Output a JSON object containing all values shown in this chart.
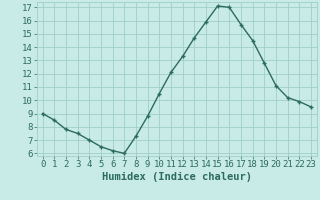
{
  "x": [
    0,
    1,
    2,
    3,
    4,
    5,
    6,
    7,
    8,
    9,
    10,
    11,
    12,
    13,
    14,
    15,
    16,
    17,
    18,
    19,
    20,
    21,
    22,
    23
  ],
  "y": [
    9.0,
    8.5,
    7.8,
    7.5,
    7.0,
    6.5,
    6.2,
    6.0,
    7.3,
    8.8,
    10.5,
    12.1,
    13.3,
    14.7,
    15.9,
    17.1,
    17.0,
    15.7,
    14.5,
    12.8,
    11.1,
    10.2,
    9.9,
    9.5
  ],
  "line_color": "#2d6b5e",
  "bg_color": "#c8ebe8",
  "grid_color": "#a0cfc9",
  "xlabel": "Humidex (Indice chaleur)",
  "ylim_min": 5.8,
  "ylim_max": 17.4,
  "xlim_min": -0.5,
  "xlim_max": 23.5,
  "yticks": [
    6,
    7,
    8,
    9,
    10,
    11,
    12,
    13,
    14,
    15,
    16,
    17
  ],
  "xticks": [
    0,
    1,
    2,
    3,
    4,
    5,
    6,
    7,
    8,
    9,
    10,
    11,
    12,
    13,
    14,
    15,
    16,
    17,
    18,
    19,
    20,
    21,
    22,
    23
  ],
  "tick_label_fontsize": 6.5,
  "xlabel_fontsize": 7.5,
  "marker": "+",
  "marker_size": 3.5,
  "linewidth": 1.0
}
